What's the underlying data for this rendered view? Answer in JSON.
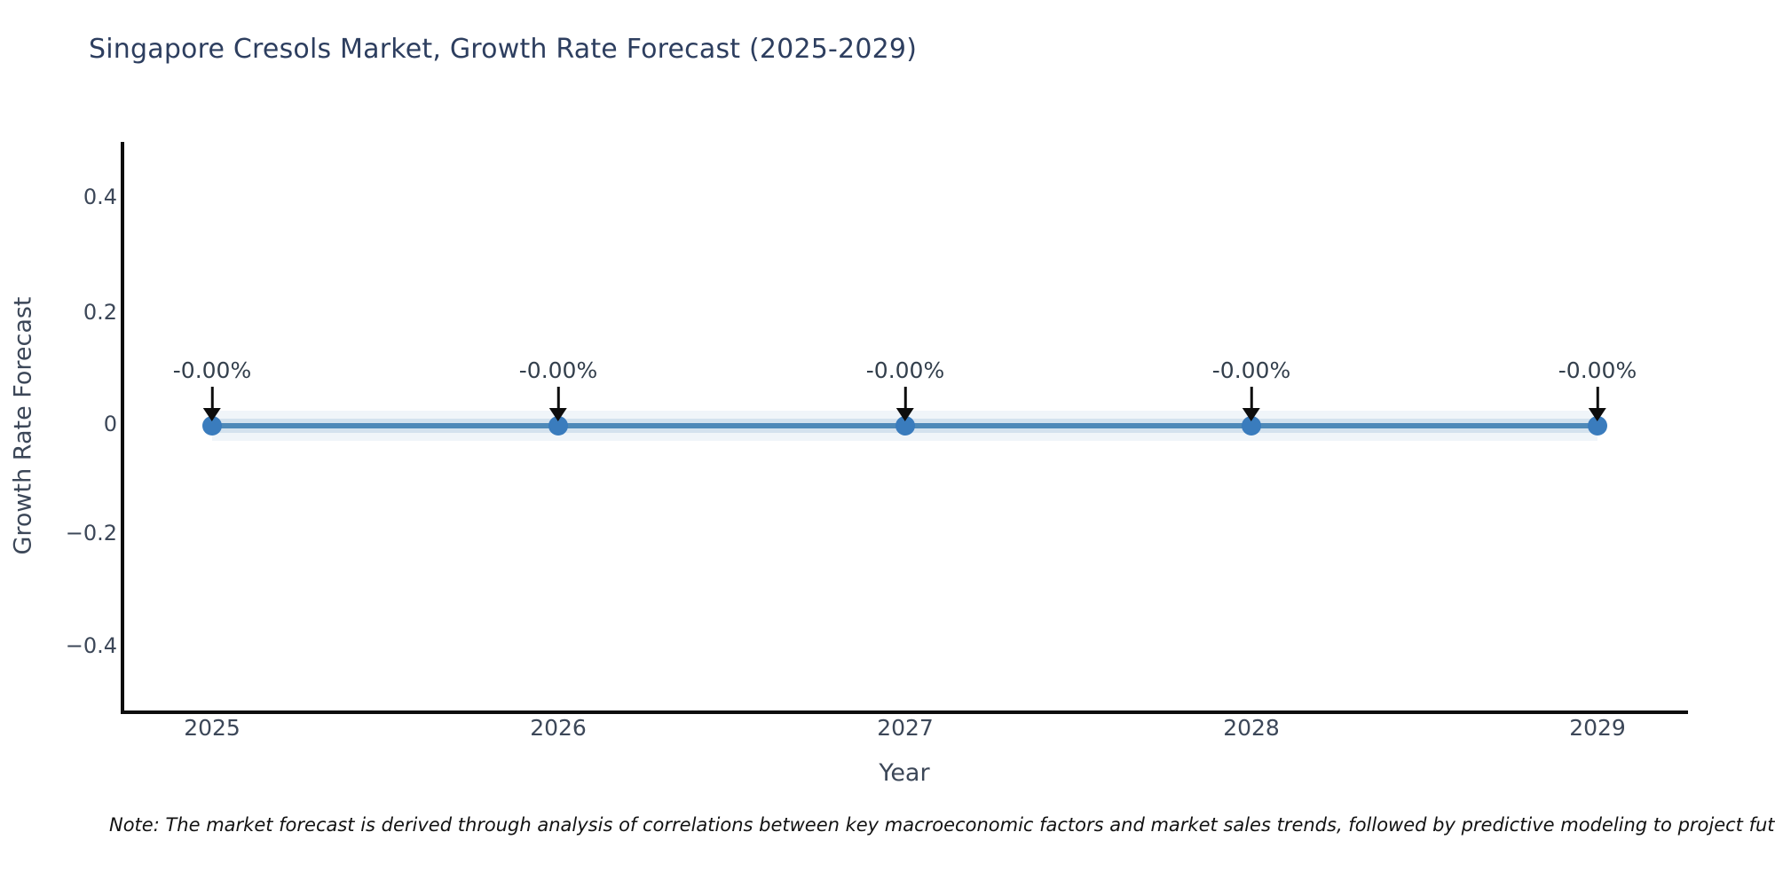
{
  "title": "Singapore Cresols Market, Growth Rate Forecast (2025-2029)",
  "note": "Note: The market forecast is derived through analysis of correlations between key macroeconomic factors and market sales trends, followed by predictive modeling to project future sa",
  "chart_data": {
    "type": "line",
    "title": "Singapore Cresols Market, Growth Rate Forecast (2025-2029)",
    "x": [
      2025,
      2026,
      2027,
      2028,
      2029
    ],
    "y": [
      0,
      0,
      0,
      0,
      0
    ],
    "point_labels": [
      "-0.00%",
      "-0.00%",
      "-0.00%",
      "-0.00%",
      "-0.00%"
    ],
    "xlabel": "Year",
    "ylabel": "Growth Rate Forecast",
    "ylim": [
      -0.5,
      0.5
    ],
    "yticks": [
      0.4,
      0.2,
      0,
      -0.2,
      -0.4
    ],
    "ytick_labels": [
      "0.4",
      "0.2",
      "0",
      "−0.2",
      "−0.4"
    ],
    "grid": false,
    "legend": "none",
    "line_color": "#4e89b8",
    "marker_color": "#3a7cbd",
    "annotation_arrow_color": "#0d0d0d",
    "title_color": "#2d3e5f",
    "tick_color": "#3c4758"
  }
}
